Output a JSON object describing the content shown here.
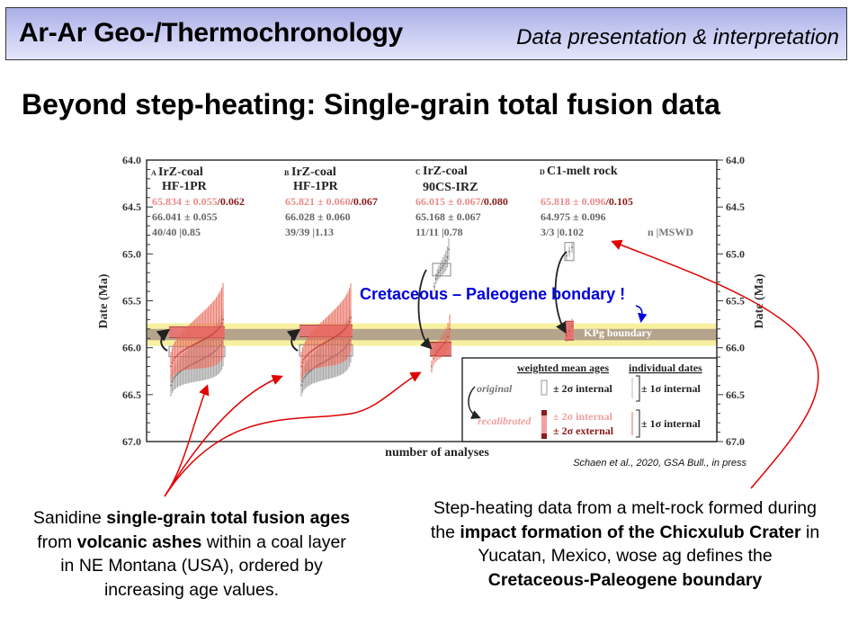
{
  "header": {
    "title": "Ar-Ar Geo-/Thermochronology",
    "subtitle": "Data presentation & interpretation"
  },
  "slide_title": "Beyond step-heating: Single-grain total fusion data",
  "annotation_kpg": "Cretaceous – Paleogene bondary !",
  "citation": "Schaen et al., 2020, GSA Bull., in press",
  "caption_left": {
    "parts": [
      "Sanidine ",
      "single-grain total fusion ages",
      " from ",
      "volcanic ashes",
      " within a coal layer in NE Montana (USA), ordered by increasing age values."
    ]
  },
  "caption_right": {
    "parts": [
      "Step-heating data from a melt-rock formed during the ",
      "impact formation of the Chicxulub Crater",
      " in Yucatan, Mexico, wose ag defines the ",
      "Cretaceous-Paleogene boundary"
    ]
  },
  "colors": {
    "recal": "#e8685a",
    "recal_dark": "#8b1a1a",
    "recal_light": "#f2a0a0",
    "orig": "#999999",
    "kpg_band": "#b5a48c",
    "kpg_yellow": "#f7f0a0",
    "annotation_blue": "#0000dd",
    "arrow_red": "#e00000"
  },
  "chart_data": {
    "type": "scatter",
    "ylabel": "Date (Ma)",
    "xlabel": "number of analyses",
    "ylim": [
      64.0,
      67.0
    ],
    "y_inverted": true,
    "yticks": [
      "64.0",
      "64.5",
      "65.0",
      "65.5",
      "66.0",
      "66.5",
      "67.0"
    ],
    "kpg_boundary": {
      "label": "KPg boundary",
      "age": 65.86,
      "range": [
        65.8,
        65.92
      ],
      "uncertainty_range": [
        65.74,
        65.98
      ]
    },
    "panels": [
      {
        "letter": "A",
        "name1": "IrZ-coal",
        "name2": "HF-1PR",
        "recal_text": "65.834 ± 0.055",
        "recal_ext": "/0.062",
        "orig_text": "66.041 ± 0.055",
        "stats": "40/40 |0.85",
        "recal_mean": 65.834,
        "recal_int": 0.055,
        "recal_ext_val": 0.062,
        "orig_mean": 66.041,
        "orig_int": 0.055,
        "n": 40,
        "orig_range": [
          66.4,
          65.9
        ],
        "recal_range": [
          66.2,
          65.7
        ],
        "sigma_range": [
          0.12,
          0.3
        ]
      },
      {
        "letter": "B",
        "name1": "IrZ-coal",
        "name2": "HF-1PR",
        "recal_text": "65.821 ± 0.060",
        "recal_ext": "/0.067",
        "orig_text": "66.028 ± 0.060",
        "stats": "39/39 |1.13",
        "recal_mean": 65.821,
        "recal_int": 0.06,
        "recal_ext_val": 0.067,
        "orig_mean": 66.028,
        "orig_int": 0.06,
        "n": 39,
        "orig_range": [
          66.4,
          65.88
        ],
        "recal_range": [
          66.2,
          65.68
        ],
        "sigma_range": [
          0.12,
          0.28
        ]
      },
      {
        "letter": "C",
        "name1": "IrZ-coal",
        "name2": "90CS-IRZ",
        "recal_text": "66.015 ± 0.067",
        "recal_ext": "/0.080",
        "orig_text": "65.168 ± 0.067",
        "stats": "11/11 |0.78",
        "recal_mean": 66.015,
        "recal_int": 0.067,
        "recal_ext_val": 0.08,
        "orig_mean": 65.168,
        "orig_int": 0.067,
        "n": 11,
        "orig_range": [
          65.35,
          64.95
        ],
        "recal_range": [
          66.2,
          65.8
        ],
        "sigma_range": [
          0.05,
          0.12
        ]
      },
      {
        "letter": "D",
        "name1": "C1-melt rock",
        "name2": "",
        "recal_text": "65.818 ± 0.096",
        "recal_ext": "/0.105",
        "orig_text": "64.975 ± 0.096",
        "stats": "3/3 |0.102",
        "recal_mean": 65.818,
        "recal_int": 0.096,
        "recal_ext_val": 0.105,
        "orig_mean": 64.975,
        "orig_int": 0.096,
        "n": 3,
        "orig_range": [
          65.02,
          64.93
        ],
        "recal_range": [
          65.87,
          65.77
        ],
        "sigma_range": [
          0.05,
          0.06
        ]
      }
    ],
    "stats_header": "n |MSWD",
    "legend": {
      "col1": "weighted mean ages",
      "col2": "individual dates",
      "original": "original",
      "recalibrated": "recalibrated",
      "orig_wm": "± 2σ internal",
      "orig_ind": "± 1σ internal",
      "recal_wm_int": "± 2σ internal",
      "recal_wm_ext": "± 2σ external",
      "recal_ind": "± 1σ internal"
    }
  }
}
